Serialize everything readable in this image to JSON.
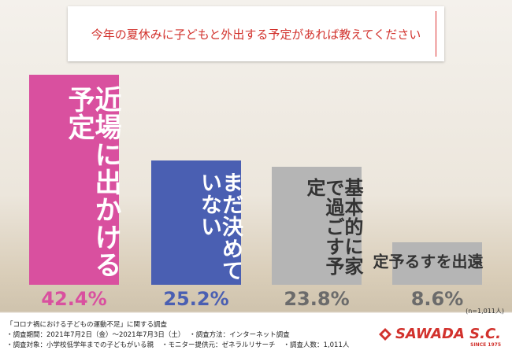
{
  "chart_data": {
    "type": "bar",
    "title": "今年の夏休みに子どもと外出する予定があれば教えてください",
    "categories": [
      "近場に出かける予定",
      "まだ決めていない",
      "基本的に家で過ごす予定",
      "遠出をする予定"
    ],
    "values": [
      42.4,
      25.2,
      23.8,
      8.6
    ],
    "value_labels": [
      "42.4%",
      "25.2%",
      "23.8%",
      "8.6%"
    ],
    "colors": [
      "#d9509f",
      "#4a5fb2",
      "#b5b5b5",
      "#b5b5b5"
    ],
    "label_colors": [
      "#ffffff",
      "#ffffff",
      "#333333",
      "#333333"
    ],
    "value_label_colors": [
      "#d9509f",
      "#4a5fb2",
      "#6b6b6b",
      "#6b6b6b"
    ],
    "ylim": [
      0,
      45
    ],
    "note": "(n=1,011人)"
  },
  "footer": {
    "heading": "「コロナ禍における子どもの運動不足」に関する調査",
    "lines": [
      [
        "・調査期間：2021年7月2日（金）～2021年7月3日（土）",
        "・調査方法：インターネット調査"
      ],
      [
        "・調査対象：小学校低学年までの子どもがいる親",
        "・モニター提供元：ゼネラルリサーチ",
        "・調査人数：1,011人"
      ]
    ]
  },
  "logo": {
    "name": "SAWADA S.C.",
    "since": "SINCE 1975"
  }
}
